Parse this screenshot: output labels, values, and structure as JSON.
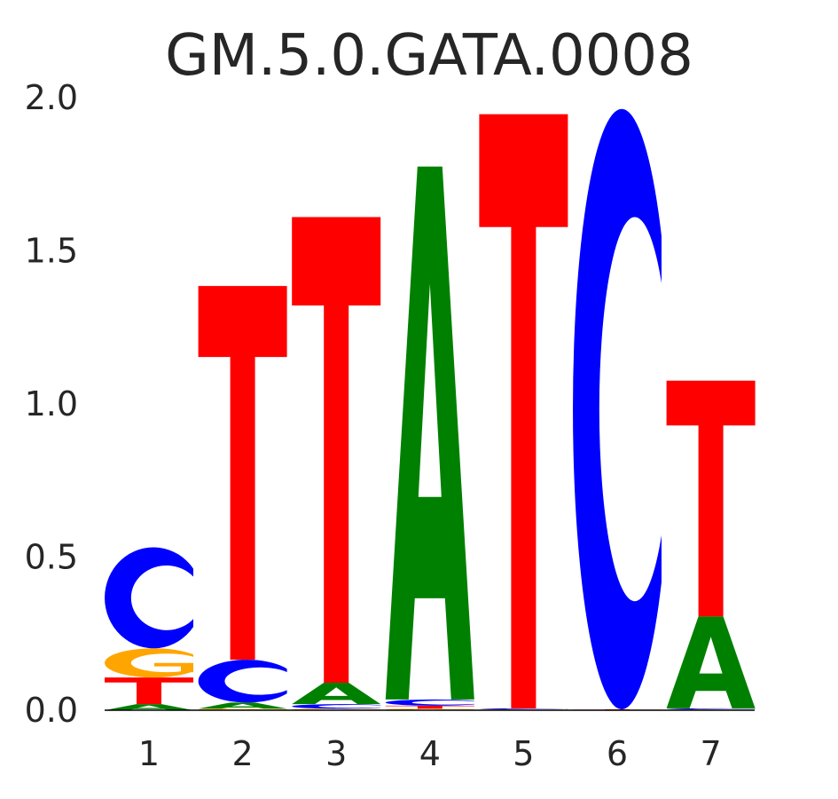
{
  "chart_data": {
    "type": "sequence-logo",
    "title": "GM.5.0.GATA.0008",
    "xlabel": "",
    "ylabel": "",
    "ylim": [
      0,
      2.0
    ],
    "yticks": [
      "0.0",
      "0.5",
      "1.0",
      "1.5",
      "2.0"
    ],
    "ytick_values": [
      0,
      0.5,
      1.0,
      1.5,
      2.0
    ],
    "categories": [
      "1",
      "2",
      "3",
      "4",
      "5",
      "6",
      "7"
    ],
    "colors": {
      "A": "#008000",
      "C": "#0000ff",
      "G": "#ffa500",
      "T": "#ff0000"
    },
    "positions": [
      [
        {
          "base": "A",
          "bits": 0.02
        },
        {
          "base": "T",
          "bits": 0.087
        },
        {
          "base": "G",
          "bits": 0.095
        },
        {
          "base": "C",
          "bits": 0.33
        }
      ],
      [
        {
          "base": "G",
          "bits": 0.005
        },
        {
          "base": "A",
          "bits": 0.02
        },
        {
          "base": "C",
          "bits": 0.14
        },
        {
          "base": "T",
          "bits": 1.22
        }
      ],
      [
        {
          "base": "G",
          "bits": 0.005
        },
        {
          "base": "C",
          "bits": 0.015
        },
        {
          "base": "A",
          "bits": 0.07
        },
        {
          "base": "T",
          "bits": 1.52
        }
      ],
      [
        {
          "base": "G",
          "bits": 0.005
        },
        {
          "base": "T",
          "bits": 0.01
        },
        {
          "base": "C",
          "bits": 0.02
        },
        {
          "base": "A",
          "bits": 1.74
        }
      ],
      [
        {
          "base": "G",
          "bits": 0.003
        },
        {
          "base": "C",
          "bits": 0.003
        },
        {
          "base": "T",
          "bits": 1.94
        }
      ],
      [
        {
          "base": "T",
          "bits": 0.003
        },
        {
          "base": "C",
          "bits": 1.96
        }
      ],
      [
        {
          "base": "G",
          "bits": 0.003
        },
        {
          "base": "C",
          "bits": 0.003
        },
        {
          "base": "A",
          "bits": 0.3
        },
        {
          "base": "T",
          "bits": 0.77
        }
      ]
    ]
  }
}
